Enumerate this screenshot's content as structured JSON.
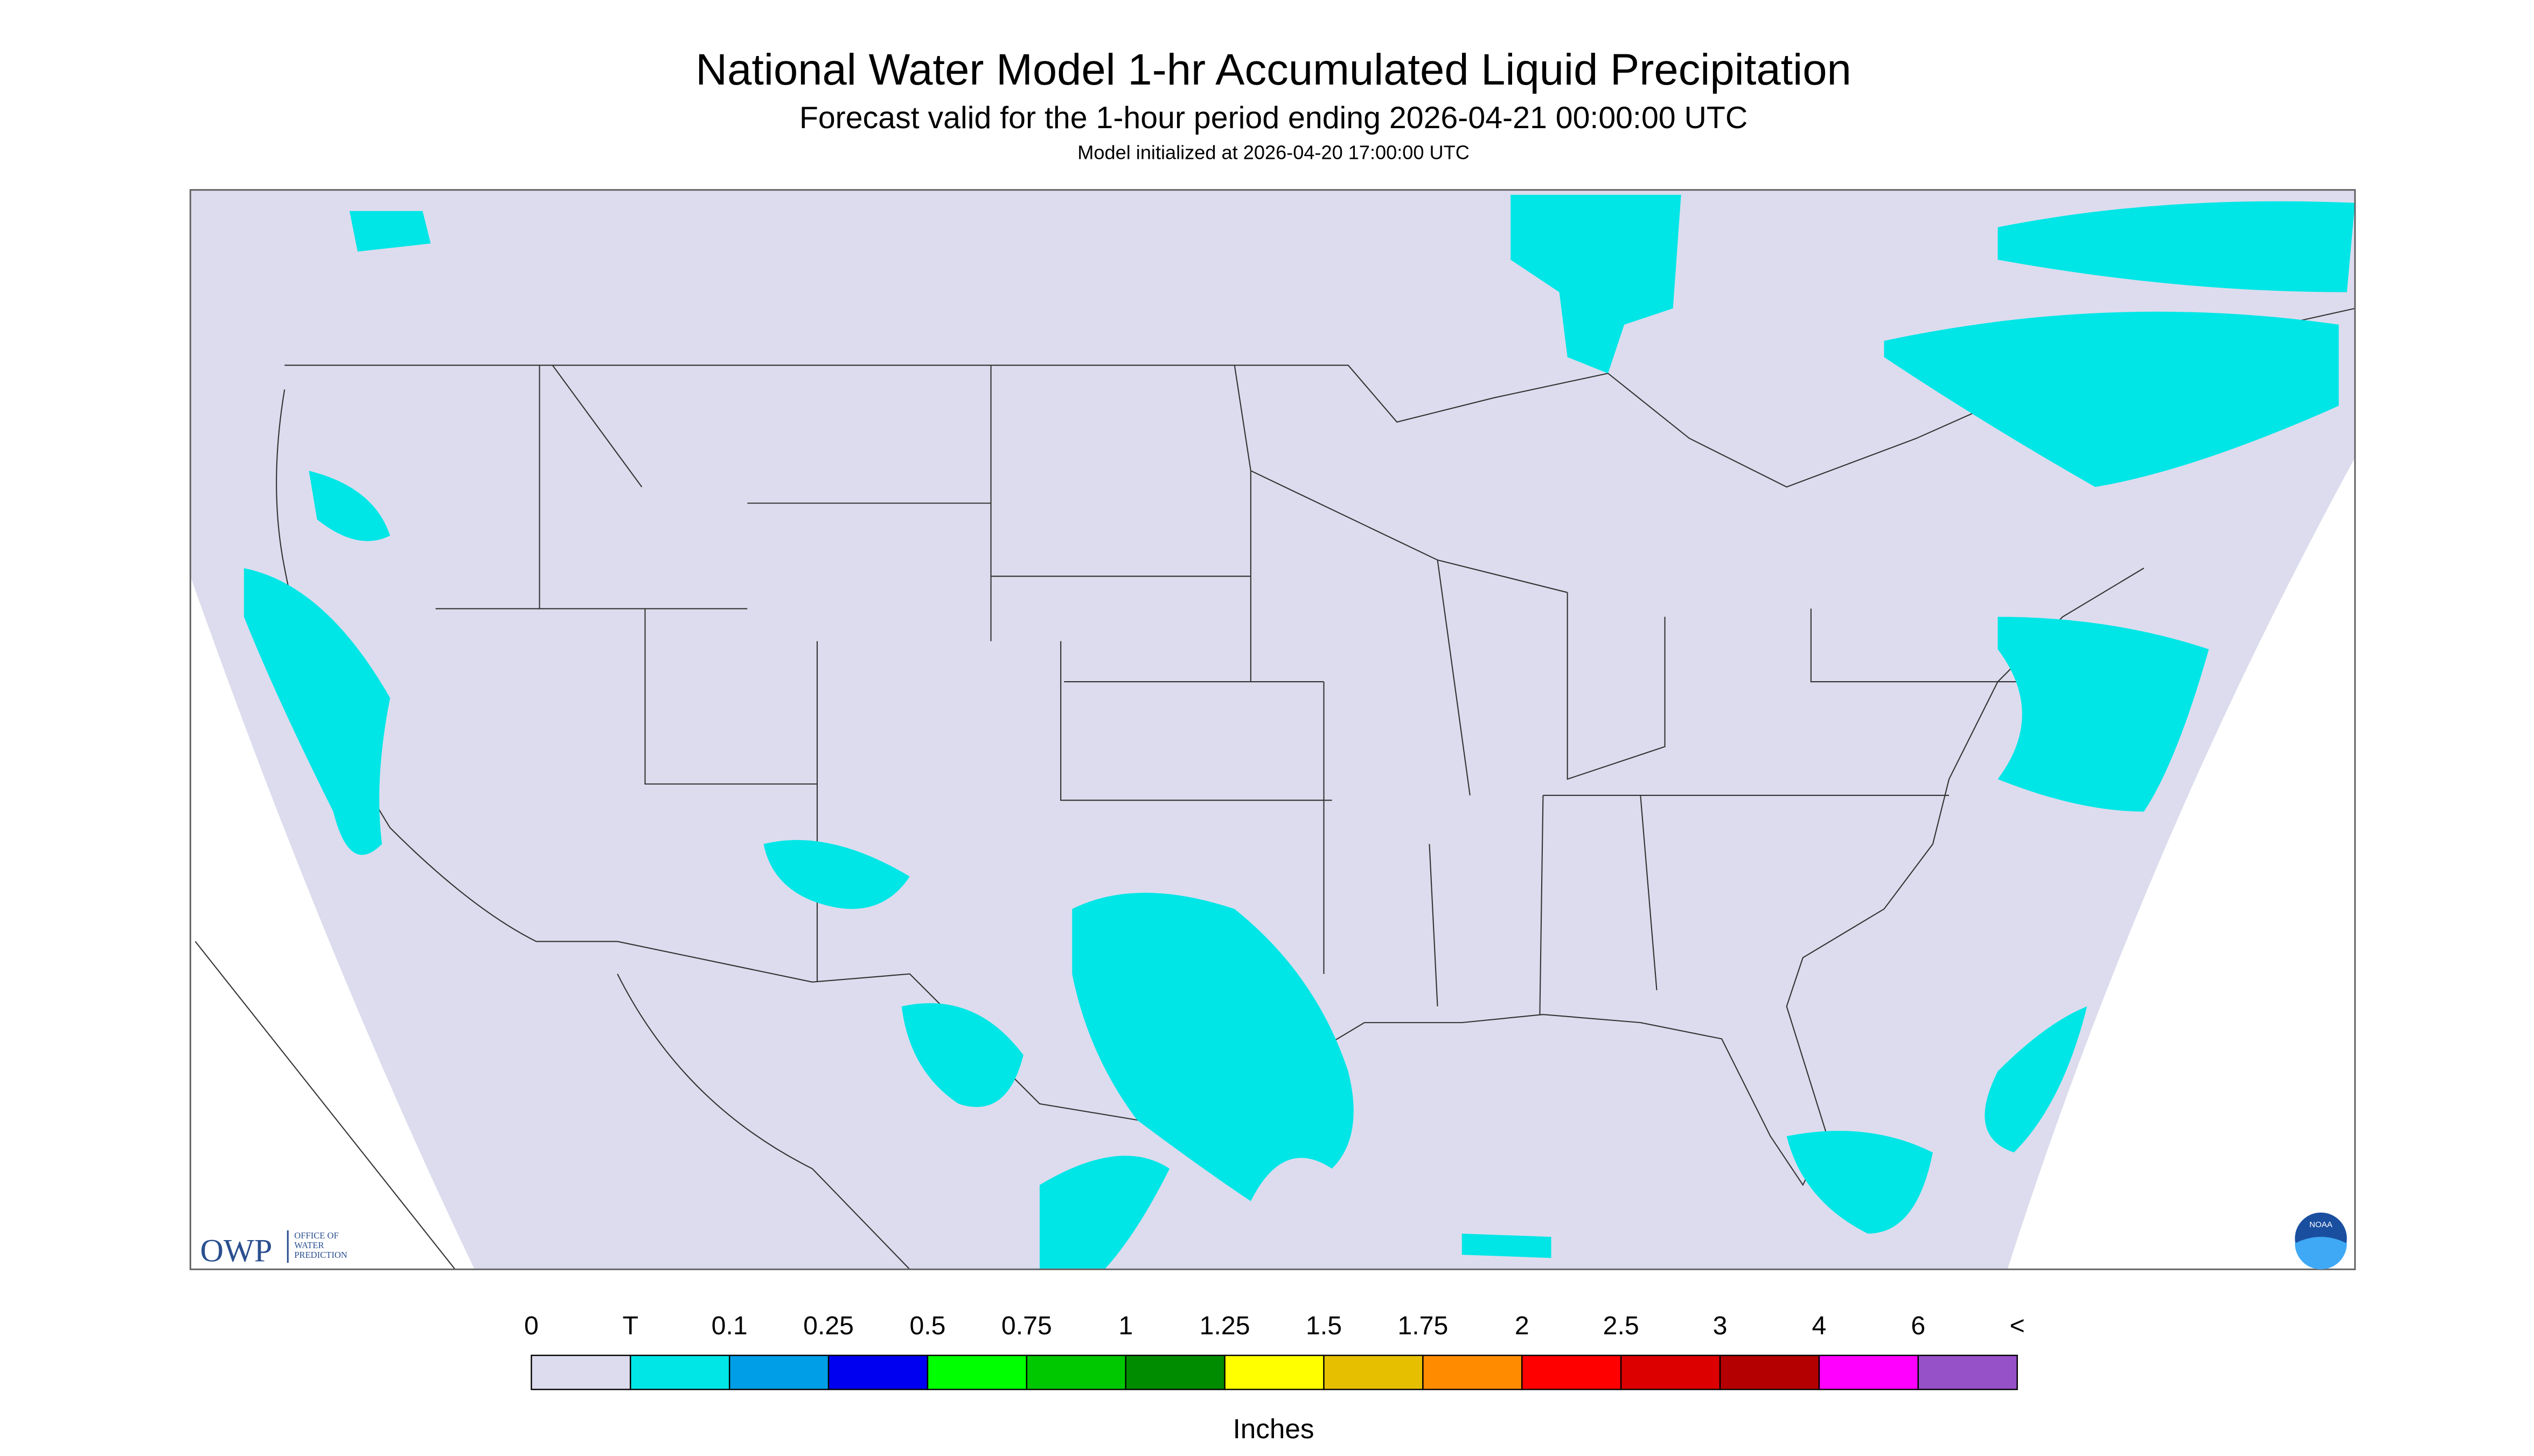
{
  "header": {
    "title": "National Water Model 1-hr Accumulated Liquid Precipitation",
    "subtitle": "Forecast valid for the 1-hour period ending 2026-04-21 00:00:00 UTC",
    "note": "Model initialized at 2026-04-20 17:00:00 UTC"
  },
  "logos": {
    "owp": "OWP",
    "owp_lines": [
      "OFFICE OF",
      "WATER",
      "PREDICTION"
    ],
    "noaa": "NOAA"
  },
  "legend": {
    "labels": [
      "0",
      "T",
      "0.1",
      "0.25",
      "0.5",
      "0.75",
      "1",
      "1.25",
      "1.5",
      "1.75",
      "2",
      "2.5",
      "3",
      "4",
      "6",
      "<"
    ],
    "colors": [
      "#dcdcee",
      "#00e6e6",
      "#009ee6",
      "#0000f0",
      "#00ff00",
      "#00c800",
      "#008c00",
      "#ffff00",
      "#e6c000",
      "#ff8c00",
      "#ff0000",
      "#dc0000",
      "#b40000",
      "#ff00ff",
      "#9650c8"
    ],
    "unit": "Inches"
  }
}
